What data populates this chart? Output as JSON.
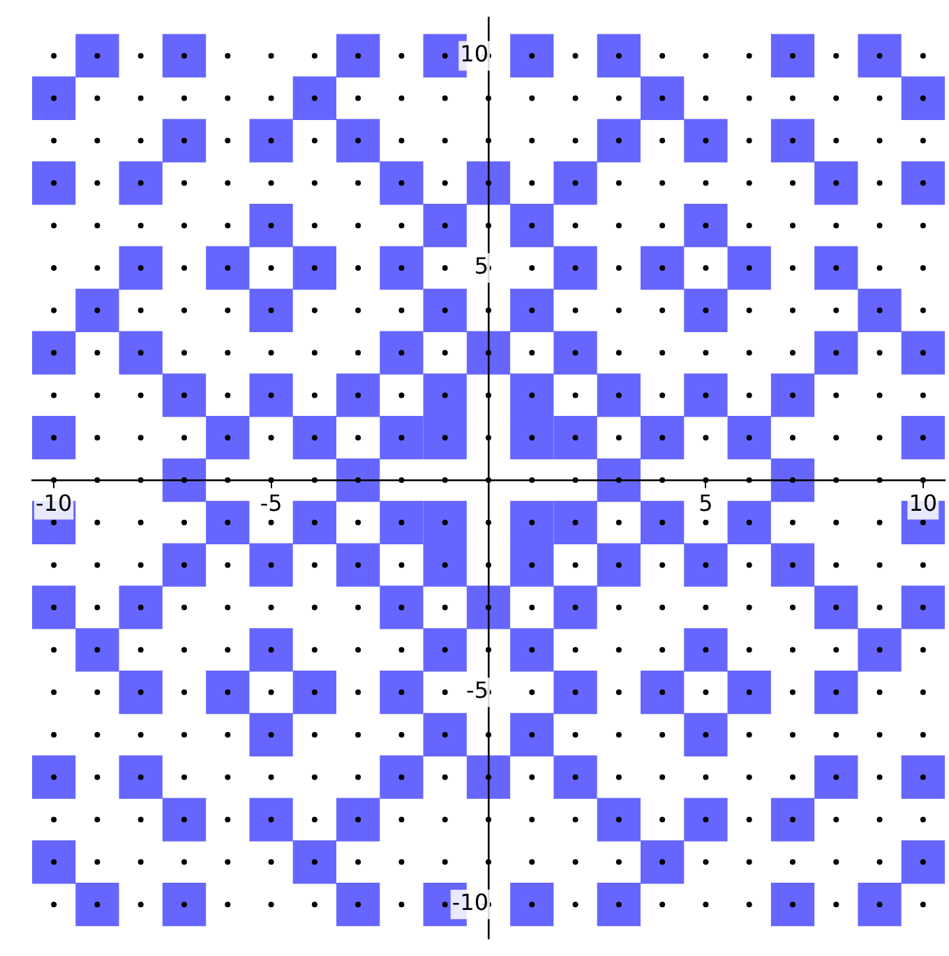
{
  "chart_data": {
    "type": "scatter",
    "xlim": [
      -10.5,
      10.5
    ],
    "ylim": [
      -10.8,
      10.9
    ],
    "xticks": [
      -10,
      -5,
      5,
      10
    ],
    "yticks": [
      -10,
      -5,
      5,
      10
    ],
    "grid": false,
    "legend": false,
    "series": [
      {
        "marker": "square",
        "color": "#6666ff",
        "x": [
          -9,
          -7,
          -3,
          -1,
          1,
          3,
          7,
          9,
          -10,
          -4,
          4,
          10,
          -7,
          -5,
          -3,
          3,
          5,
          7,
          -10,
          -8,
          -2,
          0,
          2,
          8,
          10,
          -5,
          -1,
          1,
          5,
          -8,
          -6,
          -4,
          -2,
          2,
          4,
          6,
          8,
          -9,
          -5,
          -1,
          1,
          5,
          9,
          -10,
          -8,
          -2,
          0,
          2,
          8,
          10,
          -7,
          -5,
          -3,
          -1,
          1,
          3,
          5,
          7,
          -10,
          -6,
          -4,
          -2,
          -1,
          1,
          2,
          4,
          6,
          10,
          -7,
          -3,
          3,
          7,
          -10,
          -6,
          -4,
          -2,
          -1,
          1,
          2,
          4,
          6,
          10,
          -7,
          -5,
          -3,
          -1,
          1,
          3,
          5,
          7,
          -10,
          -8,
          -2,
          0,
          2,
          8,
          10,
          -9,
          -5,
          -1,
          1,
          5,
          9,
          -8,
          -6,
          -4,
          -2,
          2,
          4,
          6,
          8,
          -5,
          -1,
          1,
          5,
          -10,
          -8,
          -2,
          0,
          2,
          8,
          10,
          -7,
          -5,
          -3,
          3,
          5,
          7,
          -10,
          -4,
          4,
          10,
          -9,
          -7,
          -3,
          -1,
          1,
          3,
          7,
          9
        ],
        "values": [
          10,
          10,
          10,
          10,
          10,
          10,
          10,
          10,
          9,
          9,
          9,
          9,
          8,
          8,
          8,
          8,
          8,
          8,
          7,
          7,
          7,
          7,
          7,
          7,
          7,
          6,
          6,
          6,
          6,
          5,
          5,
          5,
          5,
          5,
          5,
          5,
          5,
          4,
          4,
          4,
          4,
          4,
          4,
          3,
          3,
          3,
          3,
          3,
          3,
          3,
          2,
          2,
          2,
          2,
          2,
          2,
          2,
          2,
          1,
          1,
          1,
          1,
          1,
          1,
          1,
          1,
          1,
          1,
          0,
          0,
          0,
          0,
          -1,
          -1,
          -1,
          -1,
          -1,
          -1,
          -1,
          -1,
          -1,
          -1,
          -2,
          -2,
          -2,
          -2,
          -2,
          -2,
          -2,
          -2,
          -3,
          -3,
          -3,
          -3,
          -3,
          -3,
          -3,
          -4,
          -4,
          -4,
          -4,
          -4,
          -4,
          -5,
          -5,
          -5,
          -5,
          -5,
          -5,
          -5,
          -5,
          -6,
          -6,
          -6,
          -6,
          -7,
          -7,
          -7,
          -7,
          -7,
          -7,
          -7,
          -8,
          -8,
          -8,
          -8,
          -8,
          -8,
          -9,
          -9,
          -9,
          -9,
          -10,
          -10,
          -10,
          -10,
          -10,
          -10,
          -10,
          -10
        ]
      },
      {
        "marker": "circle",
        "color": "#000000",
        "x": [
          -10,
          -9,
          -8,
          -7,
          -6,
          -5,
          -4,
          -3,
          -2,
          -1,
          0,
          1,
          2,
          3,
          4,
          5,
          6,
          7,
          8,
          9,
          10,
          -10,
          -9,
          -8,
          -7,
          -6,
          -5,
          -4,
          -3,
          -2,
          -1,
          0,
          1,
          2,
          3,
          4,
          5,
          6,
          7,
          8,
          9,
          10,
          -10,
          -9,
          -8,
          -7,
          -6,
          -5,
          -4,
          -3,
          -2,
          -1,
          0,
          1,
          2,
          3,
          4,
          5,
          6,
          7,
          8,
          9,
          10,
          -10,
          -9,
          -8,
          -7,
          -6,
          -5,
          -4,
          -3,
          -2,
          -1,
          0,
          1,
          2,
          3,
          4,
          5,
          6,
          7,
          8,
          9,
          10,
          -10,
          -9,
          -8,
          -7,
          -6,
          -5,
          -4,
          -3,
          -2,
          -1,
          0,
          1,
          2,
          3,
          4,
          5,
          6,
          7,
          8,
          9,
          10,
          -10,
          -9,
          -8,
          -7,
          -6,
          -5,
          -4,
          -3,
          -2,
          -1,
          0,
          1,
          2,
          3,
          4,
          5,
          6,
          7,
          8,
          9,
          10,
          -10,
          -9,
          -8,
          -7,
          -6,
          -5,
          -4,
          -3,
          -2,
          -1,
          0,
          1,
          2,
          3,
          4,
          5,
          6,
          7,
          8,
          9,
          10,
          -10,
          -9,
          -8,
          -7,
          -6,
          -5,
          -4,
          -3,
          -2,
          -1,
          0,
          1,
          2,
          3,
          4,
          5,
          6,
          7,
          8,
          9,
          10,
          -10,
          -9,
          -8,
          -7,
          -6,
          -5,
          -4,
          -3,
          -2,
          -1,
          0,
          1,
          2,
          3,
          4,
          5,
          6,
          7,
          8,
          9,
          10,
          -10,
          -9,
          -8,
          -7,
          -6,
          -5,
          -4,
          -3,
          -2,
          -1,
          0,
          1,
          2,
          3,
          4,
          5,
          6,
          7,
          8,
          9,
          10,
          -10,
          -9,
          -8,
          -7,
          -6,
          -5,
          -4,
          -3,
          -2,
          -1,
          0,
          1,
          2,
          3,
          4,
          5,
          6,
          7,
          8,
          9,
          10,
          -10,
          -9,
          -8,
          -7,
          -6,
          -5,
          -4,
          -3,
          -2,
          -1,
          0,
          1,
          2,
          3,
          4,
          5,
          6,
          7,
          8,
          9,
          10,
          -10,
          -9,
          -8,
          -7,
          -6,
          -5,
          -4,
          -3,
          -2,
          -1,
          0,
          1,
          2,
          3,
          4,
          5,
          6,
          7,
          8,
          9,
          10,
          -10,
          -9,
          -8,
          -7,
          -6,
          -5,
          -4,
          -3,
          -2,
          -1,
          0,
          1,
          2,
          3,
          4,
          5,
          6,
          7,
          8,
          9,
          10,
          -10,
          -9,
          -8,
          -7,
          -6,
          -5,
          -4,
          -3,
          -2,
          -1,
          0,
          1,
          2,
          3,
          4,
          5,
          6,
          7,
          8,
          9,
          10,
          -10,
          -9,
          -8,
          -7,
          -6,
          -5,
          -4,
          -3,
          -2,
          -1,
          0,
          1,
          2,
          3,
          4,
          5,
          6,
          7,
          8,
          9,
          10,
          -10,
          -9,
          -8,
          -7,
          -6,
          -5,
          -4,
          -3,
          -2,
          -1,
          0,
          1,
          2,
          3,
          4,
          5,
          6,
          7,
          8,
          9,
          10,
          -10,
          -9,
          -8,
          -7,
          -6,
          -5,
          -4,
          -3,
          -2,
          -1,
          0,
          1,
          2,
          3,
          4,
          5,
          6,
          7,
          8,
          9,
          10,
          -10,
          -9,
          -8,
          -7,
          -6,
          -5,
          -4,
          -3,
          -2,
          -1,
          0,
          1,
          2,
          3,
          4,
          5,
          6,
          7,
          8,
          9,
          10,
          -10,
          -9,
          -8,
          -7,
          -6,
          -5,
          -4,
          -3,
          -2,
          -1,
          0,
          1,
          2,
          3,
          4,
          5,
          6,
          7,
          8,
          9,
          10,
          -10,
          -9,
          -8,
          -7,
          -6,
          -5,
          -4,
          -3,
          -2,
          -1,
          0,
          1,
          2,
          3,
          4,
          5,
          6,
          7,
          8,
          9,
          10
        ],
        "values": [
          10,
          10,
          10,
          10,
          10,
          10,
          10,
          10,
          10,
          10,
          10,
          10,
          10,
          10,
          10,
          10,
          10,
          10,
          10,
          10,
          10,
          9,
          9,
          9,
          9,
          9,
          9,
          9,
          9,
          9,
          9,
          9,
          9,
          9,
          9,
          9,
          9,
          9,
          9,
          9,
          9,
          9,
          8,
          8,
          8,
          8,
          8,
          8,
          8,
          8,
          8,
          8,
          8,
          8,
          8,
          8,
          8,
          8,
          8,
          8,
          8,
          8,
          8,
          7,
          7,
          7,
          7,
          7,
          7,
          7,
          7,
          7,
          7,
          7,
          7,
          7,
          7,
          7,
          7,
          7,
          7,
          7,
          7,
          7,
          6,
          6,
          6,
          6,
          6,
          6,
          6,
          6,
          6,
          6,
          6,
          6,
          6,
          6,
          6,
          6,
          6,
          6,
          6,
          6,
          6,
          5,
          5,
          5,
          5,
          5,
          5,
          5,
          5,
          5,
          5,
          5,
          5,
          5,
          5,
          5,
          5,
          5,
          5,
          5,
          5,
          5,
          4,
          4,
          4,
          4,
          4,
          4,
          4,
          4,
          4,
          4,
          4,
          4,
          4,
          4,
          4,
          4,
          4,
          4,
          4,
          4,
          4,
          3,
          3,
          3,
          3,
          3,
          3,
          3,
          3,
          3,
          3,
          3,
          3,
          3,
          3,
          3,
          3,
          3,
          3,
          3,
          3,
          3,
          2,
          2,
          2,
          2,
          2,
          2,
          2,
          2,
          2,
          2,
          2,
          2,
          2,
          2,
          2,
          2,
          2,
          2,
          2,
          2,
          2,
          1,
          1,
          1,
          1,
          1,
          1,
          1,
          1,
          1,
          1,
          1,
          1,
          1,
          1,
          1,
          1,
          1,
          1,
          1,
          1,
          1,
          0,
          0,
          0,
          0,
          0,
          0,
          0,
          0,
          0,
          0,
          0,
          0,
          0,
          0,
          0,
          0,
          0,
          0,
          0,
          0,
          0,
          -1,
          -1,
          -1,
          -1,
          -1,
          -1,
          -1,
          -1,
          -1,
          -1,
          -1,
          -1,
          -1,
          -1,
          -1,
          -1,
          -1,
          -1,
          -1,
          -1,
          -1,
          -2,
          -2,
          -2,
          -2,
          -2,
          -2,
          -2,
          -2,
          -2,
          -2,
          -2,
          -2,
          -2,
          -2,
          -2,
          -2,
          -2,
          -2,
          -2,
          -2,
          -2,
          -3,
          -3,
          -3,
          -3,
          -3,
          -3,
          -3,
          -3,
          -3,
          -3,
          -3,
          -3,
          -3,
          -3,
          -3,
          -3,
          -3,
          -3,
          -3,
          -3,
          -3,
          -4,
          -4,
          -4,
          -4,
          -4,
          -4,
          -4,
          -4,
          -4,
          -4,
          -4,
          -4,
          -4,
          -4,
          -4,
          -4,
          -4,
          -4,
          -4,
          -4,
          -4,
          -5,
          -5,
          -5,
          -5,
          -5,
          -5,
          -5,
          -5,
          -5,
          -5,
          -5,
          -5,
          -5,
          -5,
          -5,
          -5,
          -5,
          -5,
          -5,
          -5,
          -5,
          -6,
          -6,
          -6,
          -6,
          -6,
          -6,
          -6,
          -6,
          -6,
          -6,
          -6,
          -6,
          -6,
          -6,
          -6,
          -6,
          -6,
          -6,
          -6,
          -6,
          -6,
          -7,
          -7,
          -7,
          -7,
          -7,
          -7,
          -7,
          -7,
          -7,
          -7,
          -7,
          -7,
          -7,
          -7,
          -7,
          -7,
          -7,
          -7,
          -7,
          -7,
          -7,
          -8,
          -8,
          -8,
          -8,
          -8,
          -8,
          -8,
          -8,
          -8,
          -8,
          -8,
          -8,
          -8,
          -8,
          -8,
          -8,
          -8,
          -8,
          -8,
          -8,
          -8,
          -9,
          -9,
          -9,
          -9,
          -9,
          -9,
          -9,
          -9,
          -9,
          -9,
          -9,
          -9,
          -9,
          -9,
          -9,
          -9,
          -9,
          -9,
          -9,
          -9,
          -9,
          -10,
          -10,
          -10,
          -10,
          -10,
          -10,
          -10,
          -10,
          -10,
          -10,
          -10,
          -10,
          -10,
          -10,
          -10,
          -10,
          -10,
          -10,
          -10,
          -10,
          -10
        ]
      }
    ]
  }
}
